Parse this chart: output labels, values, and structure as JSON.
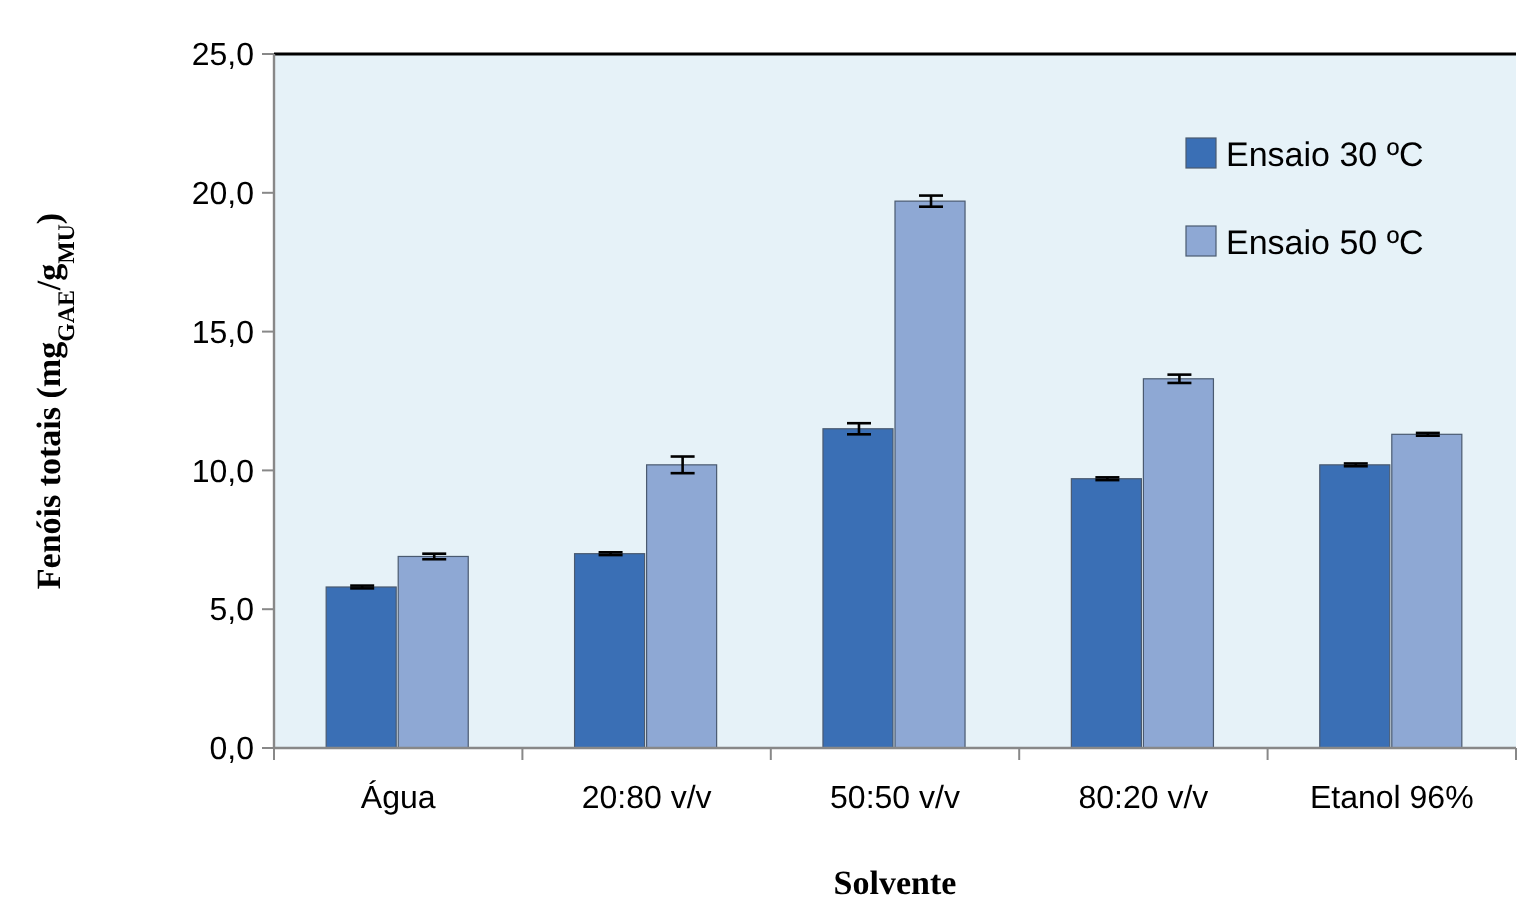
{
  "chart_data": {
    "type": "bar",
    "xlabel": "Solvente",
    "ylabel": "Fenóis totais (mg$_{GAE}$/g$_{MU}$)",
    "categories": [
      "Água",
      "20:80 v/v",
      "50:50 v/v",
      "80:20 v/v",
      "Etanol 96%"
    ],
    "series": [
      {
        "name": "Ensaio 30 ºC",
        "color": "#3a6fb5",
        "values": [
          5.8,
          7.0,
          11.5,
          9.7,
          10.2
        ],
        "errors": [
          0.05,
          0.05,
          0.2,
          0.05,
          0.05
        ]
      },
      {
        "name": "Ensaio 50 ºC",
        "color": "#8ea8d4",
        "values": [
          6.9,
          10.2,
          19.7,
          13.3,
          11.3
        ],
        "errors": [
          0.1,
          0.3,
          0.2,
          0.15,
          0.05
        ]
      }
    ],
    "ylim": [
      0,
      25
    ],
    "yticks": [
      {
        "value": 0,
        "label": "0,0"
      },
      {
        "value": 5,
        "label": "5,0"
      },
      {
        "value": 10,
        "label": "10,0"
      },
      {
        "value": 15,
        "label": "15,0"
      },
      {
        "value": 20,
        "label": "20,0"
      },
      {
        "value": 25,
        "label": "25,0"
      }
    ],
    "legend": "top right",
    "grid": false
  }
}
